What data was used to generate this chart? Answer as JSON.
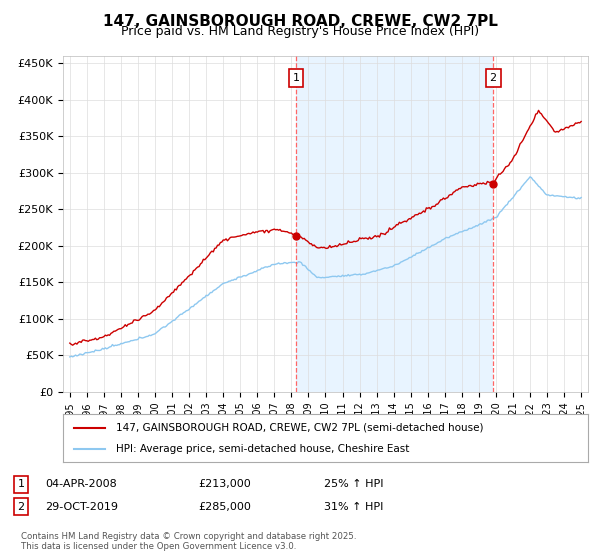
{
  "title": "147, GAINSBOROUGH ROAD, CREWE, CW2 7PL",
  "subtitle": "Price paid vs. HM Land Registry's House Price Index (HPI)",
  "title_fontsize": 11,
  "subtitle_fontsize": 9,
  "ylabel_ticks": [
    "£0",
    "£50K",
    "£100K",
    "£150K",
    "£200K",
    "£250K",
    "£300K",
    "£350K",
    "£400K",
    "£450K"
  ],
  "ytick_values": [
    0,
    50000,
    100000,
    150000,
    200000,
    250000,
    300000,
    350000,
    400000,
    450000
  ],
  "ylim": [
    0,
    460000
  ],
  "xlim_start": 1994.6,
  "xlim_end": 2025.4,
  "xtick_years": [
    1995,
    1996,
    1997,
    1998,
    1999,
    2000,
    2001,
    2002,
    2003,
    2004,
    2005,
    2006,
    2007,
    2008,
    2009,
    2010,
    2011,
    2012,
    2013,
    2014,
    2015,
    2016,
    2017,
    2018,
    2019,
    2020,
    2021,
    2022,
    2023,
    2024,
    2025
  ],
  "hpi_color": "#8EC8F0",
  "price_color": "#CC0000",
  "marker1_date": 2008.27,
  "marker1_price": 213000,
  "marker1_label": "1",
  "marker2_date": 2019.83,
  "marker2_price": 285000,
  "marker2_label": "2",
  "vline_color": "#FF6666",
  "vline_style": "--",
  "shade_color": "#E8F4FF",
  "legend_line1": "147, GAINSBOROUGH ROAD, CREWE, CW2 7PL (semi-detached house)",
  "legend_line2": "HPI: Average price, semi-detached house, Cheshire East",
  "annotation1_date": "04-APR-2008",
  "annotation1_price": "£213,000",
  "annotation1_hpi": "25% ↑ HPI",
  "annotation2_date": "29-OCT-2019",
  "annotation2_price": "£285,000",
  "annotation2_hpi": "31% ↑ HPI",
  "footer": "Contains HM Land Registry data © Crown copyright and database right 2025.\nThis data is licensed under the Open Government Licence v3.0.",
  "background_color": "#FFFFFF",
  "grid_color": "#DDDDDD"
}
